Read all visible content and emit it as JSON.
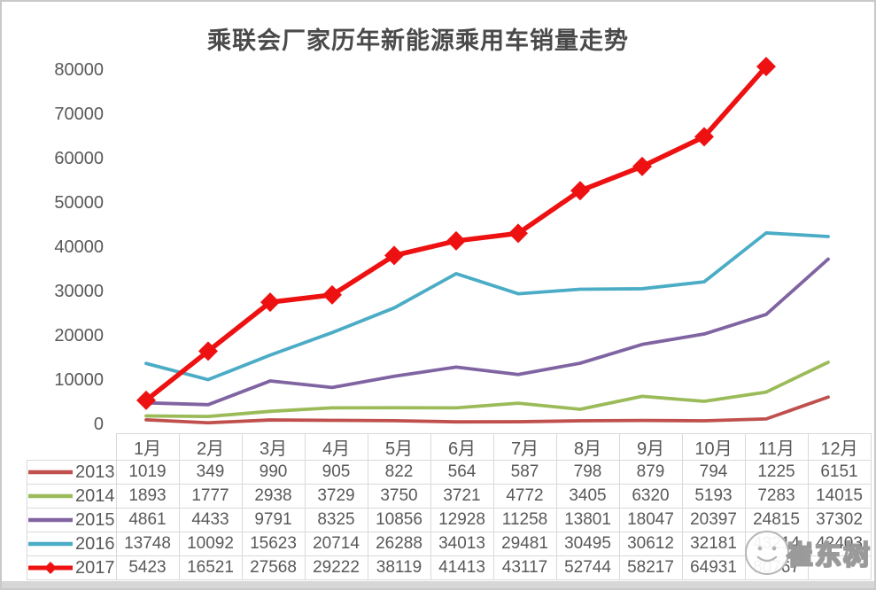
{
  "title": "乘联会厂家历年新能源乘用车销量走势",
  "watermark": {
    "text": "崔东树"
  },
  "chart_data": {
    "type": "line",
    "title": "乘联会厂家历年新能源乘用车销量走势",
    "categories": [
      "1月",
      "2月",
      "3月",
      "4月",
      "5月",
      "6月",
      "7月",
      "8月",
      "9月",
      "10月",
      "11月",
      "12月"
    ],
    "series": [
      {
        "name": "2013",
        "color": "#c0504d",
        "marker": "none",
        "values": [
          1019,
          349,
          990,
          905,
          822,
          564,
          587,
          798,
          879,
          794,
          1225,
          6151
        ]
      },
      {
        "name": "2014",
        "color": "#9bbb59",
        "marker": "none",
        "values": [
          1893,
          1777,
          2938,
          3729,
          3750,
          3721,
          4772,
          3405,
          6320,
          5193,
          7283,
          14015
        ]
      },
      {
        "name": "2015",
        "color": "#8064a2",
        "marker": "none",
        "values": [
          4861,
          4433,
          9791,
          8325,
          10856,
          12928,
          11258,
          13801,
          18047,
          20397,
          24815,
          37302
        ]
      },
      {
        "name": "2016",
        "color": "#4bacc6",
        "marker": "none",
        "values": [
          13748,
          10092,
          15623,
          20714,
          26288,
          34013,
          29481,
          30495,
          30612,
          32181,
          43214,
          42403
        ]
      },
      {
        "name": "2017",
        "color": "#ed1111",
        "marker": "diamond",
        "values": [
          5423,
          16521,
          27568,
          29222,
          38119,
          41413,
          43117,
          52744,
          58217,
          64931,
          80767,
          null
        ]
      }
    ],
    "ylim": [
      0,
      80000
    ],
    "yticks": [
      0,
      10000,
      20000,
      30000,
      40000,
      50000,
      60000,
      70000,
      80000
    ],
    "grid": false,
    "legend_position": "table-left"
  }
}
